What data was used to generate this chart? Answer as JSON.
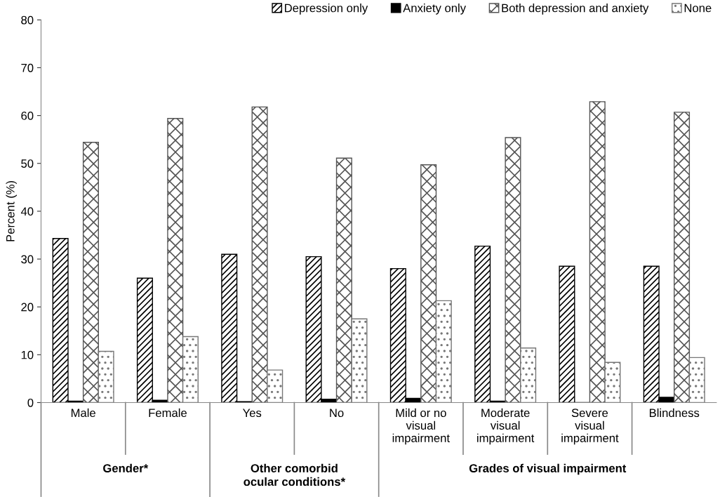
{
  "chart_data": {
    "type": "bar",
    "categories": [
      "Male",
      "Female",
      "Yes",
      "No",
      "Mild or no\nvisual\nimpairment",
      "Moderate\nvisual\nimpairment",
      "Severe\nvisual\nimpairment",
      "Blindness"
    ],
    "series": [
      {
        "name": "Depression only",
        "color": "#000000",
        "values": [
          34.3,
          26.0,
          31.0,
          30.5,
          28.0,
          32.7,
          28.5,
          28.5
        ]
      },
      {
        "name": "Anxiety only",
        "color": "#000000",
        "values": [
          0.3,
          0.5,
          0.2,
          0.7,
          0.9,
          0.3,
          0.0,
          1.1
        ]
      },
      {
        "name": "Both depression and anxiety",
        "color": "#555555",
        "values": [
          54.4,
          59.4,
          61.8,
          51.1,
          49.7,
          55.4,
          62.9,
          60.7
        ]
      },
      {
        "name": "None",
        "color": "#777777",
        "values": [
          10.7,
          13.8,
          6.8,
          17.5,
          21.3,
          11.4,
          8.4,
          9.4
        ]
      }
    ],
    "ylabel": "Percent (%)",
    "ylim": [
      0,
      80
    ],
    "yticks": [
      0,
      10,
      20,
      30,
      40,
      50,
      60,
      70,
      80
    ],
    "annotations": [
      "Gender*",
      "Other comorbid\nocular conditions*",
      "Grades of visual impairment"
    ],
    "grid": false,
    "legend": "top right"
  }
}
